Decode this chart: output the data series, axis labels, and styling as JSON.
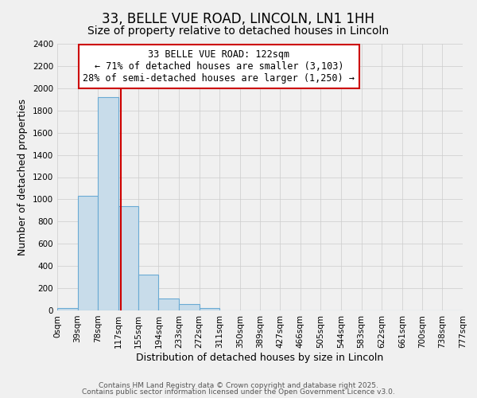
{
  "title": "33, BELLE VUE ROAD, LINCOLN, LN1 1HH",
  "subtitle": "Size of property relative to detached houses in Lincoln",
  "xlabel": "Distribution of detached houses by size in Lincoln",
  "ylabel": "Number of detached properties",
  "bar_color": "#c8dcea",
  "bar_edge_color": "#6aaad4",
  "vline_x": 122,
  "vline_color": "#cc0000",
  "annotation_lines": [
    "33 BELLE VUE ROAD: 122sqm",
    "← 71% of detached houses are smaller (3,103)",
    "28% of semi-detached houses are larger (1,250) →"
  ],
  "annotation_box_color": "#ffffff",
  "annotation_box_edge": "#cc0000",
  "bin_edges": [
    0,
    39,
    78,
    117,
    155,
    194,
    233,
    272,
    311,
    350,
    389,
    427,
    466,
    505,
    544,
    583,
    622,
    661,
    700,
    738,
    777
  ],
  "bin_labels": [
    "0sqm",
    "39sqm",
    "78sqm",
    "117sqm",
    "155sqm",
    "194sqm",
    "233sqm",
    "272sqm",
    "311sqm",
    "350sqm",
    "389sqm",
    "427sqm",
    "466sqm",
    "505sqm",
    "544sqm",
    "583sqm",
    "622sqm",
    "661sqm",
    "700sqm",
    "738sqm",
    "777sqm"
  ],
  "bar_heights": [
    20,
    1030,
    1920,
    940,
    320,
    105,
    55,
    25,
    0,
    0,
    0,
    0,
    0,
    0,
    0,
    0,
    0,
    0,
    0,
    0
  ],
  "ylim": [
    0,
    2400
  ],
  "yticks": [
    0,
    200,
    400,
    600,
    800,
    1000,
    1200,
    1400,
    1600,
    1800,
    2000,
    2200,
    2400
  ],
  "footnote1": "Contains HM Land Registry data © Crown copyright and database right 2025.",
  "footnote2": "Contains public sector information licensed under the Open Government Licence v3.0.",
  "background_color": "#f0f0f0",
  "grid_color": "#cccccc",
  "title_fontsize": 12,
  "subtitle_fontsize": 10,
  "label_fontsize": 9,
  "tick_fontsize": 7.5,
  "annotation_fontsize": 8.5,
  "footnote_fontsize": 6.5
}
